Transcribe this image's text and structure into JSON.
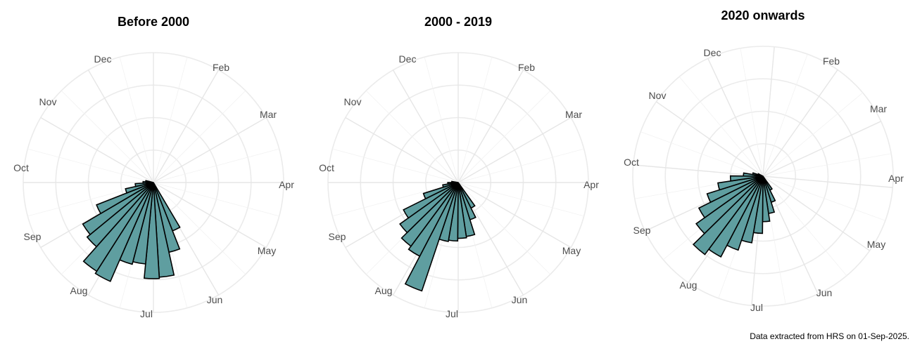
{
  "chart_data": [
    {
      "type": "polar-bar",
      "title": "Before 2000",
      "month_labels": [
        "Feb",
        "Mar",
        "Apr",
        "May",
        "Jun",
        "Jul",
        "Aug",
        "Sep",
        "Oct",
        "Nov",
        "Dec"
      ],
      "rlim": [
        0,
        1
      ],
      "grid": true,
      "bar_color": "#5f9ea0",
      "bars": [
        {
          "angle_deg": 154,
          "value": 0.4
        },
        {
          "angle_deg": 163,
          "value": 0.55
        },
        {
          "angle_deg": 172,
          "value": 0.73
        },
        {
          "angle_deg": 181,
          "value": 0.74
        },
        {
          "angle_deg": 190,
          "value": 0.63
        },
        {
          "angle_deg": 199,
          "value": 0.65
        },
        {
          "angle_deg": 208,
          "value": 0.83
        },
        {
          "angle_deg": 217,
          "value": 0.81
        },
        {
          "angle_deg": 226,
          "value": 0.66
        },
        {
          "angle_deg": 235,
          "value": 0.63
        },
        {
          "angle_deg": 244,
          "value": 0.47
        },
        {
          "angle_deg": 253,
          "value": 0.22
        },
        {
          "angle_deg": 262,
          "value": 0.14
        },
        {
          "angle_deg": 271,
          "value": 0.08
        },
        {
          "angle_deg": 280,
          "value": 0.06
        }
      ]
    },
    {
      "type": "polar-bar",
      "title": "2000 - 2019",
      "month_labels": [
        "Dec",
        "Feb",
        "Mar",
        "Apr",
        "May",
        "Jun",
        "Jul",
        "Aug",
        "Sep",
        "Oct",
        "Nov"
      ],
      "rlim": [
        0,
        1
      ],
      "grid": true,
      "bar_color": "#5f9ea0",
      "bars": [
        {
          "angle_deg": 149,
          "value": 0.22
        },
        {
          "angle_deg": 158,
          "value": 0.3
        },
        {
          "angle_deg": 167,
          "value": 0.42
        },
        {
          "angle_deg": 176,
          "value": 0.43
        },
        {
          "angle_deg": 185,
          "value": 0.45
        },
        {
          "angle_deg": 194,
          "value": 0.46
        },
        {
          "angle_deg": 203,
          "value": 0.88
        },
        {
          "angle_deg": 212,
          "value": 0.64
        },
        {
          "angle_deg": 221,
          "value": 0.61
        },
        {
          "angle_deg": 230,
          "value": 0.55
        },
        {
          "angle_deg": 239,
          "value": 0.47
        },
        {
          "angle_deg": 248,
          "value": 0.28
        },
        {
          "angle_deg": 257,
          "value": 0.12
        },
        {
          "angle_deg": 266,
          "value": 0.08
        },
        {
          "angle_deg": 275,
          "value": 0.05
        }
      ]
    },
    {
      "type": "polar-bar",
      "title": "2020 onwards",
      "month_labels": [
        "Dec",
        "Feb",
        "Mar",
        "Apr",
        "May",
        "Jun",
        "Jul",
        "Aug",
        "Sep",
        "Oct",
        "Nov"
      ],
      "rlim": [
        0,
        1
      ],
      "grid": true,
      "bar_color": "#5f9ea0",
      "bars": [
        {
          "angle_deg": 149,
          "value": 0.12
        },
        {
          "angle_deg": 158,
          "value": 0.21
        },
        {
          "angle_deg": 167,
          "value": 0.29
        },
        {
          "angle_deg": 176,
          "value": 0.35
        },
        {
          "angle_deg": 185,
          "value": 0.44
        },
        {
          "angle_deg": 194,
          "value": 0.52
        },
        {
          "angle_deg": 203,
          "value": 0.6
        },
        {
          "angle_deg": 212,
          "value": 0.7
        },
        {
          "angle_deg": 221,
          "value": 0.75
        },
        {
          "angle_deg": 230,
          "value": 0.63
        },
        {
          "angle_deg": 239,
          "value": 0.55
        },
        {
          "angle_deg": 248,
          "value": 0.45
        },
        {
          "angle_deg": 257,
          "value": 0.35
        },
        {
          "angle_deg": 266,
          "value": 0.25
        },
        {
          "angle_deg": 275,
          "value": 0.15
        },
        {
          "angle_deg": 284,
          "value": 0.08
        },
        {
          "angle_deg": 293,
          "value": 0.04
        }
      ]
    }
  ],
  "caption": "Data extracted from HRS on 01-Sep-2025."
}
